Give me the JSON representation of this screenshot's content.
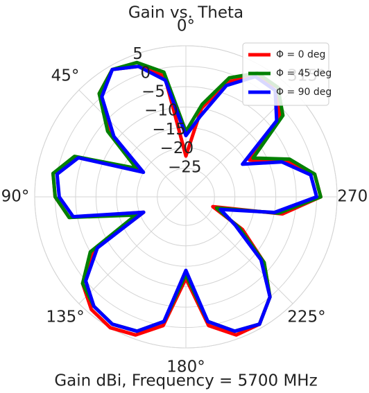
{
  "chart_data": {
    "type": "polar_line",
    "title": "Gain vs. Theta",
    "xlabel": "Gain dBi, Frequency = 5700 MHz",
    "theta_direction": "counterclockwise",
    "theta_zero": "top",
    "grid": true,
    "legend": "upper right",
    "x": [
      0,
      10,
      20,
      30,
      40,
      50,
      60,
      70,
      80,
      90,
      100,
      110,
      120,
      130,
      140,
      150,
      160,
      170,
      180,
      190,
      200,
      210,
      220,
      230,
      240,
      250,
      260,
      270,
      280,
      290,
      300,
      310,
      320,
      330,
      340,
      350
    ],
    "series": [
      {
        "name": "Φ = 0 deg",
        "color": "#ff0000",
        "values": [
          -22,
          -2,
          2,
          4,
          1,
          -8,
          -19,
          -4,
          1,
          0,
          -3,
          -21,
          -6,
          1,
          4,
          5,
          4,
          0,
          -12,
          0,
          4,
          4,
          0,
          -7,
          -16,
          -25,
          -8,
          1,
          0,
          -6,
          -14,
          -2,
          3,
          2,
          -2,
          -10
        ]
      },
      {
        "name": "Φ = 45 deg",
        "color": "#008000",
        "values": [
          -16,
          -1,
          3,
          4,
          1,
          -7,
          -18,
          -3,
          1,
          0,
          -3,
          -19,
          -5,
          1,
          3,
          4,
          3,
          -1,
          -13,
          -1,
          3,
          4,
          0,
          -7,
          -17,
          -24,
          -9,
          1,
          0,
          -5,
          -13,
          -1,
          3,
          3,
          -1,
          -9
        ]
      },
      {
        "name": "Φ = 90 deg",
        "color": "#0000ff",
        "values": [
          -17,
          -3,
          2,
          4,
          0,
          -9,
          -20,
          -4,
          0,
          -1,
          -4,
          -21,
          -7,
          0,
          3,
          4,
          3,
          -1,
          -14,
          -1,
          3,
          4,
          0,
          -8,
          -18,
          -23,
          -10,
          0,
          -1,
          -7,
          -16,
          -3,
          2,
          2,
          -3,
          -12
        ]
      }
    ],
    "ylim": [
      -32,
      5
    ],
    "yticks": [
      {
        "value": -25,
        "label": "−25"
      },
      {
        "value": -20,
        "label": "−20"
      },
      {
        "value": -15,
        "label": "−15"
      },
      {
        "value": -10,
        "label": "−10"
      },
      {
        "value": -5,
        "label": "−5"
      },
      0,
      5
    ],
    "xticks": [
      {
        "value": 0,
        "label": "0°"
      },
      {
        "value": 45,
        "label": "45°"
      },
      {
        "value": 90,
        "label": "90°"
      },
      {
        "value": 135,
        "label": "135°"
      },
      {
        "value": 180,
        "label": "180°"
      },
      {
        "value": 225,
        "label": "225°"
      },
      {
        "value": 270,
        "label": "270°"
      },
      {
        "value": 315,
        "label": "315°"
      }
    ]
  }
}
